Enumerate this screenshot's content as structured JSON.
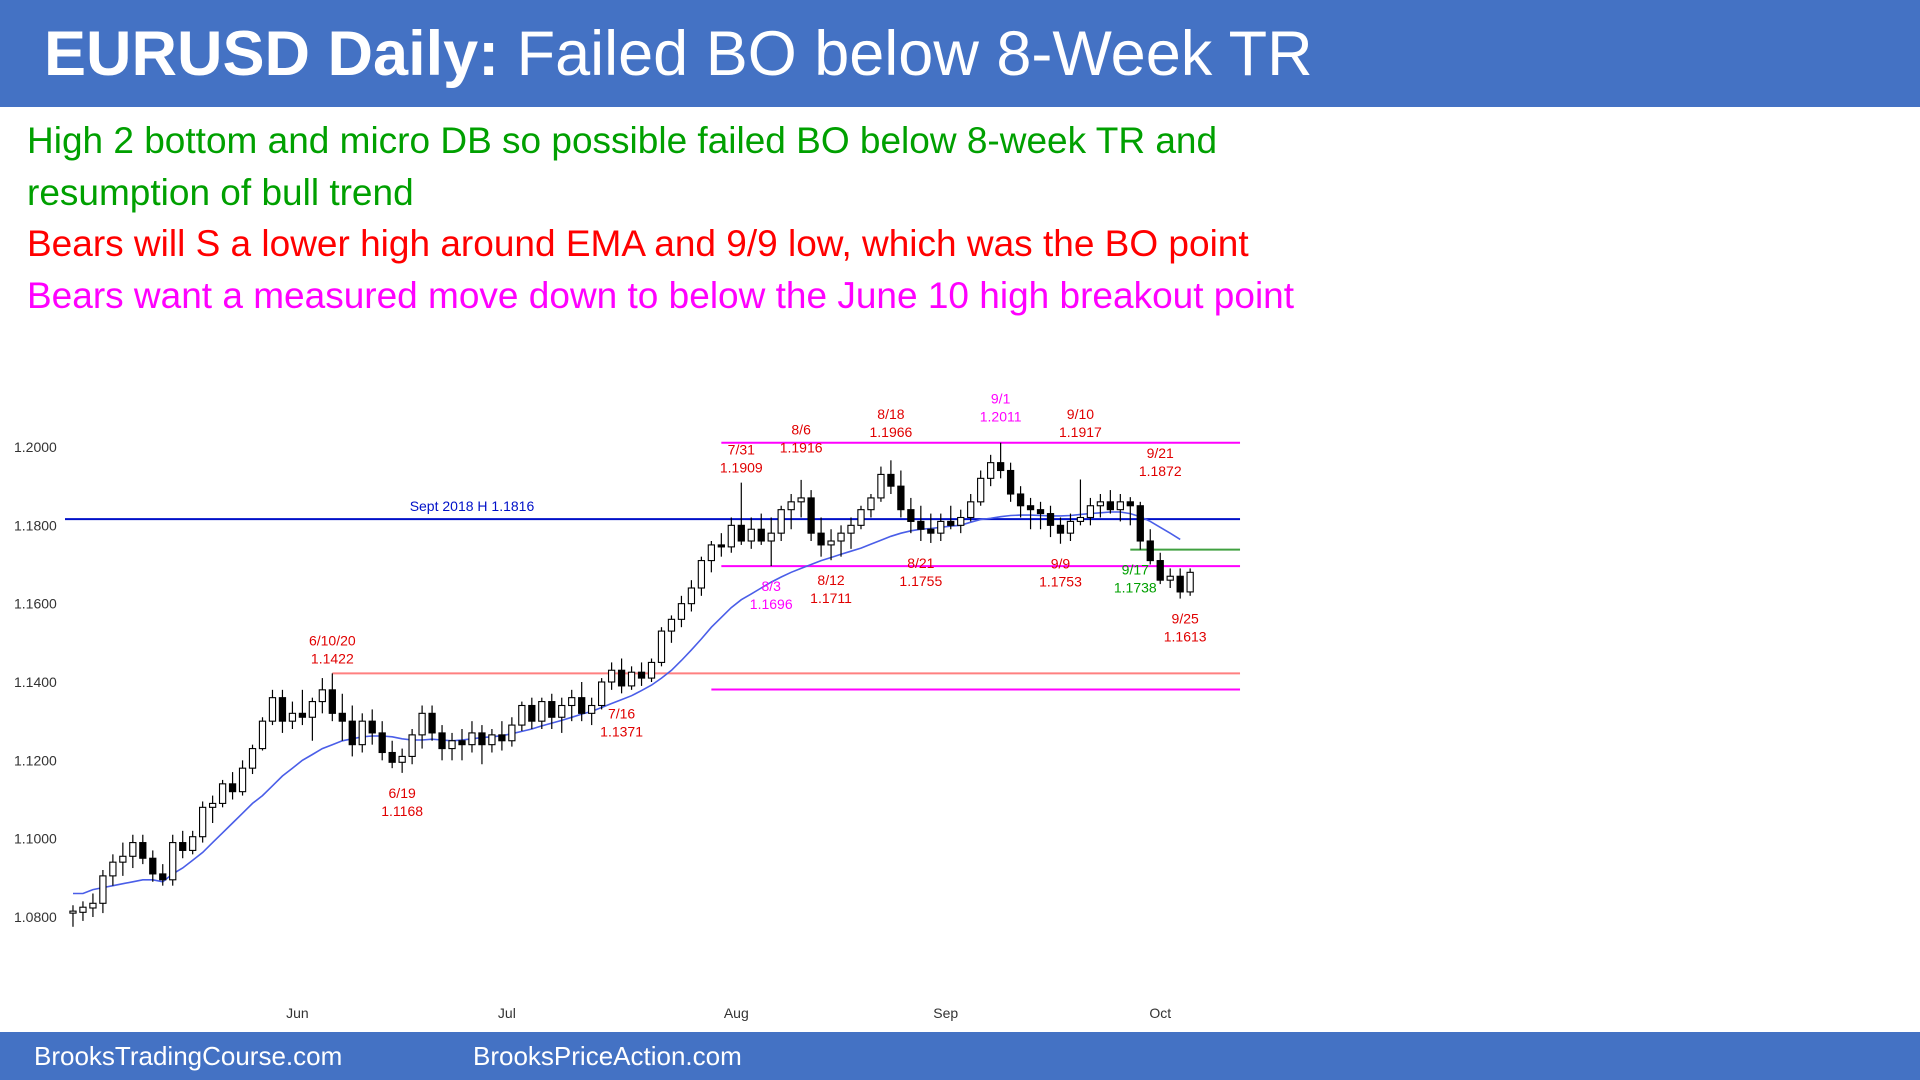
{
  "header": {
    "title_bold": "EURUSD Daily:",
    "title_rest": " Failed BO below 8-Week TR"
  },
  "notes": [
    {
      "text": "High 2 bottom and micro DB so possible failed BO below 8-week TR and",
      "color": "#00a000"
    },
    {
      "text": "resumption of bull trend",
      "color": "#00a000"
    },
    {
      "text": "Bears will S a lower high around EMA and 9/9 low, which was the BO point",
      "color": "#ff0000"
    },
    {
      "text": "Bears want a measured move down to below the June 10 high breakout point",
      "color": "#ff00ff"
    }
  ],
  "footer": {
    "left": "BrooksTradingCourse.com",
    "right": "BrooksPriceAction.com"
  },
  "colors": {
    "header_bg": "#4472c4",
    "bull_candle": "#ffffff",
    "bear_candle": "#000000",
    "ema": "#4a5ee8",
    "sept_2018_line": "#0010c8",
    "range_lines": "#ff00ff",
    "june_high_line": "#ff8080",
    "green_line": "#40a040",
    "label_red": "#e00000",
    "label_magenta": "#ff00ff",
    "label_green": "#00a000"
  },
  "chart_data": {
    "type": "candlestick",
    "title": "EURUSD Daily",
    "ylim": [
      1.076,
      1.203
    ],
    "yticks": [
      "1.0800",
      "1.1000",
      "1.1200",
      "1.1400",
      "1.1600",
      "1.1800",
      "1.2000"
    ],
    "xticks": [
      {
        "label": "Jun",
        "bar": 22.5
      },
      {
        "label": "Jul",
        "bar": 43.5
      },
      {
        "label": "Aug",
        "bar": 66.5
      },
      {
        "label": "Sep",
        "bar": 87.5
      },
      {
        "label": "Oct",
        "bar": 109
      }
    ],
    "xlim_bars": [
      -0.8,
      118
    ],
    "ohlc": [
      [
        1.081,
        1.083,
        1.0775,
        1.0815
      ],
      [
        1.0812,
        1.084,
        1.079,
        1.0825
      ],
      [
        1.0823,
        1.086,
        1.08,
        1.0835
      ],
      [
        1.0835,
        1.092,
        1.081,
        1.0905
      ],
      [
        1.0905,
        1.096,
        1.088,
        1.094
      ],
      [
        1.094,
        1.099,
        1.0905,
        1.0955
      ],
      [
        1.0955,
        1.101,
        1.0925,
        1.099
      ],
      [
        1.099,
        1.101,
        1.0935,
        1.095
      ],
      [
        1.095,
        1.097,
        1.089,
        1.091
      ],
      [
        1.091,
        1.0935,
        1.088,
        1.0895
      ],
      [
        1.0895,
        1.101,
        1.088,
        1.099
      ],
      [
        1.099,
        1.102,
        1.095,
        1.097
      ],
      [
        1.097,
        1.102,
        1.096,
        1.1005
      ],
      [
        1.1005,
        1.1095,
        1.099,
        1.108
      ],
      [
        1.108,
        1.111,
        1.104,
        1.109
      ],
      [
        1.109,
        1.115,
        1.108,
        1.114
      ],
      [
        1.114,
        1.117,
        1.11,
        1.112
      ],
      [
        1.112,
        1.12,
        1.111,
        1.118
      ],
      [
        1.118,
        1.124,
        1.1165,
        1.123
      ],
      [
        1.123,
        1.131,
        1.1225,
        1.13
      ],
      [
        1.13,
        1.138,
        1.129,
        1.136
      ],
      [
        1.136,
        1.138,
        1.127,
        1.13
      ],
      [
        1.13,
        1.135,
        1.128,
        1.132
      ],
      [
        1.132,
        1.138,
        1.129,
        1.131
      ],
      [
        1.131,
        1.136,
        1.125,
        1.135
      ],
      [
        1.135,
        1.141,
        1.132,
        1.138
      ],
      [
        1.138,
        1.1422,
        1.13,
        1.132
      ],
      [
        1.132,
        1.137,
        1.125,
        1.13
      ],
      [
        1.13,
        1.134,
        1.121,
        1.124
      ],
      [
        1.124,
        1.132,
        1.122,
        1.13
      ],
      [
        1.13,
        1.133,
        1.124,
        1.127
      ],
      [
        1.127,
        1.13,
        1.12,
        1.122
      ],
      [
        1.122,
        1.125,
        1.118,
        1.1195
      ],
      [
        1.1195,
        1.123,
        1.1168,
        1.121
      ],
      [
        1.121,
        1.128,
        1.119,
        1.1265
      ],
      [
        1.1265,
        1.134,
        1.123,
        1.132
      ],
      [
        1.132,
        1.134,
        1.125,
        1.127
      ],
      [
        1.127,
        1.129,
        1.12,
        1.123
      ],
      [
        1.123,
        1.127,
        1.12,
        1.125
      ],
      [
        1.125,
        1.128,
        1.12,
        1.124
      ],
      [
        1.124,
        1.13,
        1.122,
        1.127
      ],
      [
        1.127,
        1.129,
        1.119,
        1.124
      ],
      [
        1.124,
        1.128,
        1.122,
        1.1265
      ],
      [
        1.1265,
        1.13,
        1.1225,
        1.125
      ],
      [
        1.125,
        1.131,
        1.1235,
        1.129
      ],
      [
        1.129,
        1.135,
        1.1275,
        1.134
      ],
      [
        1.134,
        1.136,
        1.128,
        1.13
      ],
      [
        1.13,
        1.136,
        1.128,
        1.135
      ],
      [
        1.135,
        1.137,
        1.128,
        1.131
      ],
      [
        1.131,
        1.136,
        1.127,
        1.134
      ],
      [
        1.134,
        1.138,
        1.13,
        1.136
      ],
      [
        1.136,
        1.14,
        1.13,
        1.132
      ],
      [
        1.132,
        1.136,
        1.129,
        1.134
      ],
      [
        1.134,
        1.141,
        1.133,
        1.14
      ],
      [
        1.14,
        1.145,
        1.138,
        1.143
      ],
      [
        1.143,
        1.146,
        1.1371,
        1.139
      ],
      [
        1.139,
        1.144,
        1.138,
        1.1425
      ],
      [
        1.1425,
        1.145,
        1.139,
        1.141
      ],
      [
        1.141,
        1.146,
        1.14,
        1.145
      ],
      [
        1.145,
        1.154,
        1.144,
        1.153
      ],
      [
        1.153,
        1.157,
        1.15,
        1.156
      ],
      [
        1.156,
        1.162,
        1.154,
        1.16
      ],
      [
        1.16,
        1.166,
        1.158,
        1.164
      ],
      [
        1.164,
        1.172,
        1.162,
        1.171
      ],
      [
        1.171,
        1.176,
        1.168,
        1.175
      ],
      [
        1.175,
        1.178,
        1.172,
        1.1745
      ],
      [
        1.1745,
        1.182,
        1.173,
        1.18
      ],
      [
        1.18,
        1.1909,
        1.175,
        1.176
      ],
      [
        1.176,
        1.182,
        1.174,
        1.179
      ],
      [
        1.179,
        1.183,
        1.175,
        1.176
      ],
      [
        1.176,
        1.182,
        1.1696,
        1.178
      ],
      [
        1.178,
        1.185,
        1.176,
        1.184
      ],
      [
        1.184,
        1.188,
        1.179,
        1.186
      ],
      [
        1.186,
        1.1916,
        1.182,
        1.187
      ],
      [
        1.187,
        1.189,
        1.176,
        1.178
      ],
      [
        1.178,
        1.182,
        1.172,
        1.175
      ],
      [
        1.175,
        1.179,
        1.1711,
        1.176
      ],
      [
        1.176,
        1.18,
        1.172,
        1.178
      ],
      [
        1.178,
        1.182,
        1.174,
        1.18
      ],
      [
        1.18,
        1.185,
        1.179,
        1.184
      ],
      [
        1.184,
        1.188,
        1.182,
        1.187
      ],
      [
        1.187,
        1.195,
        1.186,
        1.193
      ],
      [
        1.193,
        1.1966,
        1.188,
        1.19
      ],
      [
        1.19,
        1.194,
        1.182,
        1.184
      ],
      [
        1.184,
        1.187,
        1.178,
        1.181
      ],
      [
        1.181,
        1.185,
        1.176,
        1.179
      ],
      [
        1.179,
        1.183,
        1.1755,
        1.178
      ],
      [
        1.178,
        1.183,
        1.176,
        1.181
      ],
      [
        1.181,
        1.185,
        1.179,
        1.18
      ],
      [
        1.18,
        1.184,
        1.178,
        1.182
      ],
      [
        1.182,
        1.188,
        1.181,
        1.186
      ],
      [
        1.186,
        1.194,
        1.185,
        1.192
      ],
      [
        1.192,
        1.198,
        1.19,
        1.196
      ],
      [
        1.196,
        1.2011,
        1.192,
        1.194
      ],
      [
        1.194,
        1.196,
        1.186,
        1.188
      ],
      [
        1.188,
        1.19,
        1.182,
        1.185
      ],
      [
        1.185,
        1.187,
        1.179,
        1.184
      ],
      [
        1.184,
        1.186,
        1.179,
        1.183
      ],
      [
        1.183,
        1.185,
        1.177,
        1.18
      ],
      [
        1.18,
        1.182,
        1.1753,
        1.178
      ],
      [
        1.178,
        1.183,
        1.176,
        1.181
      ],
      [
        1.181,
        1.1917,
        1.18,
        1.182
      ],
      [
        1.182,
        1.187,
        1.18,
        1.185
      ],
      [
        1.185,
        1.188,
        1.182,
        1.186
      ],
      [
        1.186,
        1.189,
        1.183,
        1.184
      ],
      [
        1.184,
        1.188,
        1.181,
        1.186
      ],
      [
        1.186,
        1.1872,
        1.18,
        1.185
      ],
      [
        1.185,
        1.186,
        1.1738,
        1.176
      ],
      [
        1.176,
        1.179,
        1.17,
        1.171
      ],
      [
        1.171,
        1.173,
        1.165,
        1.166
      ],
      [
        1.166,
        1.169,
        1.164,
        1.167
      ],
      [
        1.167,
        1.169,
        1.1613,
        1.163
      ],
      [
        1.163,
        1.169,
        1.162,
        1.168
      ]
    ],
    "ema": [
      1.086,
      1.086,
      1.087,
      1.0875,
      1.088,
      1.0885,
      1.089,
      1.0895,
      1.0895,
      1.089,
      1.091,
      1.0925,
      1.0945,
      1.0965,
      1.099,
      1.1015,
      1.104,
      1.1065,
      1.109,
      1.111,
      1.1135,
      1.116,
      1.118,
      1.12,
      1.1215,
      1.123,
      1.124,
      1.125,
      1.1255,
      1.126,
      1.1262,
      1.1262,
      1.126,
      1.1255,
      1.1252,
      1.1252,
      1.1254,
      1.1252,
      1.125,
      1.1252,
      1.1255,
      1.1258,
      1.126,
      1.1263,
      1.1268,
      1.1274,
      1.128,
      1.1288,
      1.1295,
      1.1302,
      1.131,
      1.1318,
      1.1325,
      1.1335,
      1.1345,
      1.1355,
      1.1365,
      1.1378,
      1.1392,
      1.141,
      1.143,
      1.1455,
      1.1482,
      1.151,
      1.154,
      1.1565,
      1.159,
      1.161,
      1.1625,
      1.164,
      1.1655,
      1.1668,
      1.168,
      1.169,
      1.17,
      1.171,
      1.1718,
      1.1726,
      1.1734,
      1.1742,
      1.1752,
      1.1762,
      1.1772,
      1.178,
      1.1786,
      1.179,
      1.1792,
      1.1795,
      1.1798,
      1.18,
      1.1808,
      1.1815,
      1.1818,
      1.1822,
      1.1825,
      1.1826,
      1.1826,
      1.1825,
      1.1824,
      1.1824,
      1.1825,
      1.1828,
      1.183,
      1.1832,
      1.1834,
      1.1834,
      1.183,
      1.1822,
      1.181,
      1.1795,
      1.178,
      1.1764
    ],
    "hlines": [
      {
        "price": 1.1816,
        "from_bar": -0.8,
        "to_bar": 117,
        "color": "#0010c8",
        "label": "Sept 2018 H 1.1816",
        "label_bar": 40
      },
      {
        "price": 1.2011,
        "from_bar": 65,
        "to_bar": 117,
        "color": "#ff00ff"
      },
      {
        "price": 1.1696,
        "from_bar": 65,
        "to_bar": 117,
        "color": "#ff00ff"
      },
      {
        "price": 1.1422,
        "from_bar": 26,
        "to_bar": 117,
        "color": "#ff8080"
      },
      {
        "price": 1.1381,
        "from_bar": 64,
        "to_bar": 117,
        "color": "#ff00ff"
      },
      {
        "price": 1.1738,
        "from_bar": 106,
        "to_bar": 117,
        "color": "#40a040"
      }
    ],
    "annotations": [
      {
        "lines": [
          "6/10/20",
          "1.1422"
        ],
        "bar": 26,
        "price": 1.1422,
        "pos": "above",
        "color": "#e00000"
      },
      {
        "lines": [
          "6/19",
          "1.1168"
        ],
        "bar": 33,
        "price": 1.1168,
        "pos": "below",
        "color": "#e00000"
      },
      {
        "lines": [
          "7/16",
          "1.1371"
        ],
        "bar": 55,
        "price": 1.1371,
        "pos": "below",
        "color": "#e00000"
      },
      {
        "lines": [
          "7/31",
          "1.1909"
        ],
        "bar": 67,
        "price": 1.1909,
        "pos": "above",
        "color": "#e00000"
      },
      {
        "lines": [
          "8/3",
          "1.1696"
        ],
        "bar": 70,
        "price": 1.1696,
        "pos": "below",
        "color": "#ff00ff"
      },
      {
        "lines": [
          "8/6",
          "1.1916"
        ],
        "bar": 73,
        "price": 1.196,
        "pos": "above",
        "color": "#e00000"
      },
      {
        "lines": [
          "8/12",
          "1.1711"
        ],
        "bar": 76,
        "price": 1.1711,
        "pos": "below",
        "color": "#e00000"
      },
      {
        "lines": [
          "8/18",
          "1.1966"
        ],
        "bar": 82,
        "price": 1.2,
        "pos": "above",
        "color": "#e00000"
      },
      {
        "lines": [
          "8/21",
          "1.1755"
        ],
        "bar": 85,
        "price": 1.1755,
        "pos": "below",
        "color": "#e00000"
      },
      {
        "lines": [
          "9/1",
          "1.2011"
        ],
        "bar": 93,
        "price": 1.204,
        "pos": "above",
        "color": "#ff00ff"
      },
      {
        "lines": [
          "9/9",
          "1.1753"
        ],
        "bar": 99,
        "price": 1.1753,
        "pos": "below",
        "color": "#e00000"
      },
      {
        "lines": [
          "9/10",
          "1.1917"
        ],
        "bar": 101,
        "price": 1.2,
        "pos": "above",
        "color": "#e00000"
      },
      {
        "lines": [
          "9/17",
          "1.1738"
        ],
        "bar": 106.5,
        "price": 1.1738,
        "pos": "below",
        "color": "#00a000"
      },
      {
        "lines": [
          "9/21",
          "1.1872"
        ],
        "bar": 109,
        "price": 1.19,
        "pos": "above",
        "color": "#e00000"
      },
      {
        "lines": [
          "9/25",
          "1.1613"
        ],
        "bar": 111.5,
        "price": 1.1613,
        "pos": "below",
        "color": "#e00000"
      }
    ]
  }
}
